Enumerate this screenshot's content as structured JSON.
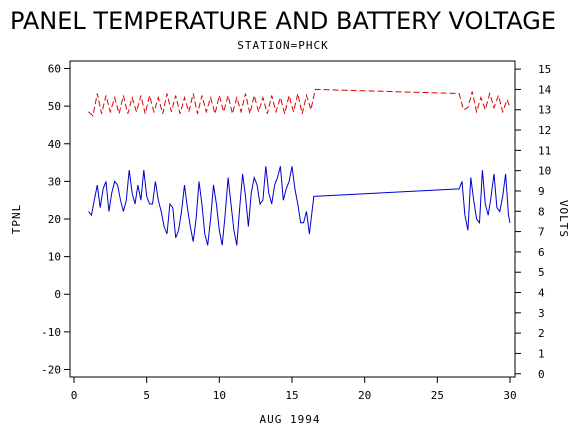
{
  "chart_data": {
    "type": "line",
    "title": "PANEL TEMPERATURE AND BATTERY VOLTAGE",
    "subtitle": "STATION=PHCK",
    "xlabel": "AUG 1994",
    "ylabel_left": "TPNL",
    "ylabel_right": "VOLTS",
    "xlim": [
      0,
      30
    ],
    "ylim_left": [
      -22,
      62
    ],
    "ylim_right": [
      -0.16,
      15.4
    ],
    "x_ticks": [
      0,
      5,
      10,
      15,
      20,
      25,
      30
    ],
    "y_ticks_left": [
      -20,
      -10,
      0,
      10,
      20,
      30,
      40,
      50,
      60
    ],
    "y_ticks_right": [
      0,
      1,
      2,
      3,
      4,
      5,
      6,
      7,
      8,
      9,
      10,
      11,
      12,
      13,
      14,
      15
    ],
    "grid": false,
    "series": [
      {
        "axis": "left",
        "color": "#0000cc",
        "style": "solid",
        "x": [
          1.0,
          1.2,
          1.4,
          1.6,
          1.8,
          2.0,
          2.2,
          2.4,
          2.6,
          2.8,
          3.0,
          3.2,
          3.4,
          3.6,
          3.8,
          4.0,
          4.2,
          4.4,
          4.6,
          4.8,
          5.0,
          5.2,
          5.4,
          5.6,
          5.8,
          6.0,
          6.2,
          6.4,
          6.6,
          6.8,
          7.0,
          7.2,
          7.4,
          7.6,
          7.8,
          8.0,
          8.2,
          8.4,
          8.6,
          8.8,
          9.0,
          9.2,
          9.4,
          9.6,
          9.8,
          10.0,
          10.2,
          10.4,
          10.6,
          10.8,
          11.0,
          11.2,
          11.4,
          11.6,
          11.8,
          12.0,
          12.2,
          12.4,
          12.6,
          12.8,
          13.0,
          13.2,
          13.4,
          13.6,
          13.8,
          14.0,
          14.2,
          14.4,
          14.6,
          14.8,
          15.0,
          15.2,
          15.4,
          15.6,
          15.8,
          16.0,
          16.2,
          16.5,
          26.5,
          26.7,
          26.9,
          27.1,
          27.3,
          27.5,
          27.7,
          27.9,
          28.1,
          28.3,
          28.5,
          28.7,
          28.9,
          29.1,
          29.3,
          29.5,
          29.7,
          29.9,
          30.0
        ],
        "y": [
          22,
          21,
          25,
          29,
          23,
          28,
          30,
          22,
          27,
          30,
          29,
          25,
          22,
          25,
          33,
          27,
          24,
          29,
          25,
          33,
          26,
          24,
          24,
          30,
          25,
          22,
          18,
          16,
          24,
          23,
          15,
          17,
          22,
          29,
          23,
          18,
          14,
          20,
          30,
          24,
          16,
          13,
          20,
          29,
          24,
          17,
          13,
          21,
          31,
          24,
          17,
          13,
          23,
          32,
          26,
          18,
          27,
          31,
          29,
          24,
          25,
          34,
          27,
          24,
          29,
          31,
          34,
          25,
          28,
          30,
          34,
          28,
          24,
          19,
          19,
          22,
          16,
          26,
          28,
          30,
          21,
          17,
          31,
          25,
          20,
          19,
          33,
          24,
          21,
          26,
          32,
          23,
          22,
          26,
          32,
          21,
          19
        ]
      },
      {
        "axis": "right",
        "color": "#dd0000",
        "style": "dashed",
        "x": [
          1.0,
          1.3,
          1.6,
          1.9,
          2.2,
          2.5,
          2.8,
          3.1,
          3.4,
          3.7,
          4.0,
          4.3,
          4.6,
          4.9,
          5.2,
          5.5,
          5.8,
          6.1,
          6.4,
          6.7,
          7.0,
          7.3,
          7.6,
          7.9,
          8.2,
          8.5,
          8.8,
          9.1,
          9.4,
          9.7,
          10.0,
          10.3,
          10.6,
          10.9,
          11.2,
          11.5,
          11.8,
          12.1,
          12.4,
          12.7,
          13.0,
          13.3,
          13.6,
          13.9,
          14.2,
          14.5,
          14.8,
          15.1,
          15.4,
          15.7,
          16.0,
          16.3,
          16.6,
          26.5,
          26.8,
          27.1,
          27.4,
          27.7,
          28.0,
          28.3,
          28.6,
          28.9,
          29.2,
          29.5,
          29.8,
          30.0
        ],
        "y": [
          12.9,
          12.7,
          13.8,
          12.8,
          13.7,
          12.9,
          13.6,
          12.8,
          13.7,
          12.8,
          13.6,
          12.9,
          13.7,
          12.8,
          13.7,
          12.9,
          13.6,
          12.8,
          13.8,
          12.9,
          13.7,
          12.8,
          13.6,
          12.9,
          13.8,
          12.8,
          13.7,
          12.9,
          13.6,
          12.8,
          13.7,
          12.9,
          13.7,
          12.8,
          13.6,
          12.9,
          13.8,
          12.8,
          13.7,
          12.9,
          13.6,
          12.8,
          13.7,
          12.9,
          13.6,
          12.8,
          13.7,
          12.9,
          13.8,
          12.8,
          13.7,
          13.0,
          14.0,
          13.8,
          13.0,
          13.1,
          13.9,
          12.9,
          13.6,
          13.0,
          13.8,
          13.1,
          13.7,
          12.9,
          13.5,
          13.1
        ]
      }
    ]
  }
}
